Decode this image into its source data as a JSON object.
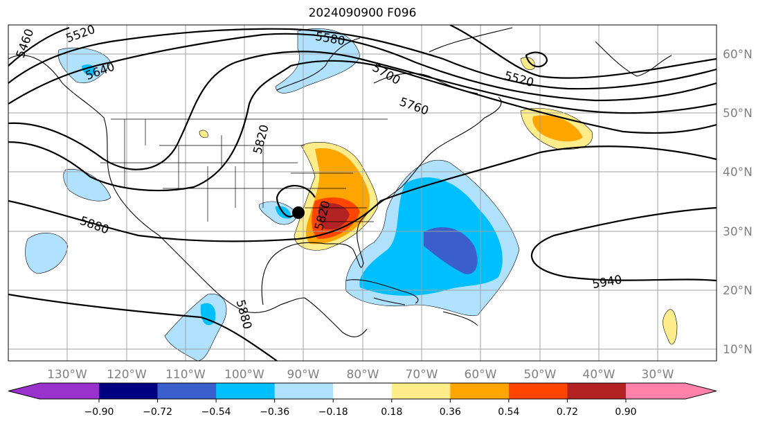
{
  "title": "2024090900 F096",
  "map": {
    "longitude_labels": [
      "130°W",
      "120°W",
      "110°W",
      "100°W",
      "90°W",
      "80°W",
      "70°W",
      "60°W",
      "50°W",
      "40°W",
      "30°W"
    ],
    "latitude_labels": [
      "60°N",
      "50°N",
      "40°N",
      "30°N",
      "20°N",
      "10°N"
    ],
    "contour_labels": [
      "5460",
      "5520",
      "5580",
      "5640",
      "5700",
      "5760",
      "5820",
      "5520",
      "5880",
      "5940",
      "5880",
      "5820"
    ],
    "marker": "storm-center-dot"
  },
  "colorbar": {
    "ticks": [
      "−0.90",
      "−0.72",
      "−0.54",
      "−0.36",
      "−0.18",
      "0.18",
      "0.36",
      "0.54",
      "0.72",
      "0.90"
    ],
    "colors": [
      "#9932CC",
      "#000080",
      "#3A5FCD",
      "#00BFFF",
      "#B0E2FF",
      "#FFFFFF",
      "#FFEC8B",
      "#FFA500",
      "#FF4500",
      "#B22222",
      "#FF82AB"
    ]
  }
}
